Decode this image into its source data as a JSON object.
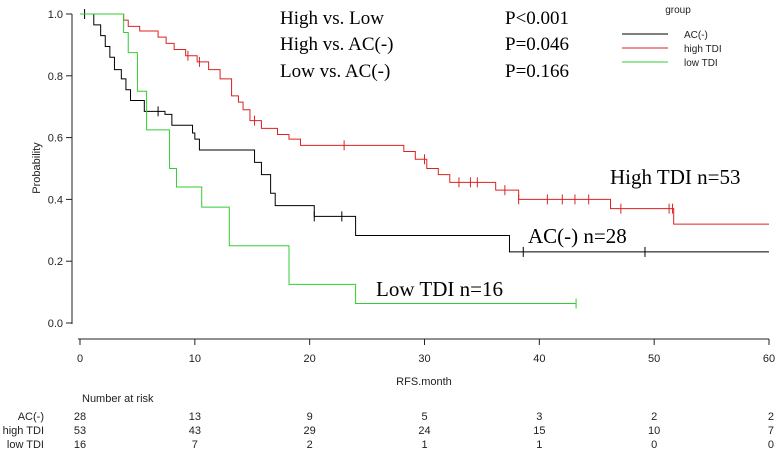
{
  "chart_data": {
    "type": "line",
    "subtype": "kaplan-meier-step",
    "xlabel": "RFS.month",
    "ylabel": "Probability",
    "xlim": [
      0,
      60
    ],
    "ylim": [
      0,
      1
    ],
    "x_ticks": [
      0,
      10,
      20,
      30,
      40,
      50,
      60
    ],
    "y_ticks": [
      "0.0",
      "0.2",
      "0.4",
      "0.6",
      "0.8",
      "1.0"
    ],
    "grid": false,
    "legend": {
      "title": "group",
      "placement": "top-right",
      "entries": [
        {
          "name": "AC(-)",
          "color": "#000000"
        },
        {
          "name": "high TDI",
          "color": "#dd2222"
        },
        {
          "name": "low TDI",
          "color": "#33cc33"
        }
      ]
    },
    "annotations": [
      {
        "comparison": "High vs. Low",
        "p": "P<0.001"
      },
      {
        "comparison": "High vs. AC(-)",
        "p": "P=0.046"
      },
      {
        "comparison": "Low vs. AC(-)",
        "p": "P=0.166"
      }
    ],
    "series": [
      {
        "name": "high TDI",
        "color": "#dd2222",
        "label": "High TDI n=53",
        "steps": [
          [
            0,
            1.0
          ],
          [
            3.8,
            0.98
          ],
          [
            4.2,
            0.96
          ],
          [
            5.2,
            0.945
          ],
          [
            6.8,
            0.925
          ],
          [
            7.5,
            0.905
          ],
          [
            8.2,
            0.885
          ],
          [
            9.2,
            0.865
          ],
          [
            10.2,
            0.845
          ],
          [
            11.2,
            0.82
          ],
          [
            12.2,
            0.79
          ],
          [
            13.2,
            0.735
          ],
          [
            13.8,
            0.715
          ],
          [
            14.2,
            0.69
          ],
          [
            14.8,
            0.655
          ],
          [
            15.8,
            0.63
          ],
          [
            17.2,
            0.61
          ],
          [
            18.2,
            0.595
          ],
          [
            19.2,
            0.575
          ],
          [
            28.2,
            0.555
          ],
          [
            29.2,
            0.53
          ],
          [
            30.2,
            0.5
          ],
          [
            31.2,
            0.48
          ],
          [
            32.2,
            0.455
          ],
          [
            36.2,
            0.43
          ],
          [
            38.2,
            0.4
          ],
          [
            46.2,
            0.37
          ],
          [
            51.2,
            0.37
          ],
          [
            51.7,
            0.32
          ],
          [
            60,
            0.32
          ]
        ],
        "censor_x": [
          9.4,
          10.4,
          15.2,
          23.0,
          30.0,
          33.0,
          34.0,
          34.6,
          37.0,
          38.2,
          40.7,
          42.0,
          43.1,
          44.3,
          47.1,
          51.3,
          51.6
        ]
      },
      {
        "name": "AC(-)",
        "color": "#000000",
        "label": "AC(-) n=28",
        "steps": [
          [
            0,
            1.0
          ],
          [
            1.2,
            0.965
          ],
          [
            1.8,
            0.93
          ],
          [
            2.2,
            0.895
          ],
          [
            2.6,
            0.86
          ],
          [
            3.0,
            0.82
          ],
          [
            3.6,
            0.79
          ],
          [
            4.0,
            0.755
          ],
          [
            4.4,
            0.72
          ],
          [
            5.6,
            0.685
          ],
          [
            7.4,
            0.675
          ],
          [
            8.0,
            0.64
          ],
          [
            9.8,
            0.615
          ],
          [
            10.0,
            0.595
          ],
          [
            10.4,
            0.56
          ],
          [
            15.2,
            0.52
          ],
          [
            15.8,
            0.48
          ],
          [
            16.6,
            0.42
          ],
          [
            17.0,
            0.38
          ],
          [
            20.4,
            0.345
          ],
          [
            24.0,
            0.283
          ],
          [
            37.4,
            0.23
          ],
          [
            60,
            0.23
          ]
        ],
        "censor_x": [
          0.4,
          6.8,
          20.4,
          22.8,
          38.6,
          49.2
        ]
      },
      {
        "name": "low TDI",
        "color": "#33cc33",
        "label": "Low TDI n=16",
        "steps": [
          [
            0,
            1.0
          ],
          [
            3.8,
            0.94
          ],
          [
            4.2,
            0.875
          ],
          [
            5.0,
            0.75
          ],
          [
            5.8,
            0.625
          ],
          [
            7.8,
            0.5
          ],
          [
            8.4,
            0.44
          ],
          [
            10.6,
            0.375
          ],
          [
            13.0,
            0.25
          ],
          [
            18.2,
            0.125
          ],
          [
            24.0,
            0.063
          ],
          [
            43.2,
            0.063
          ]
        ],
        "censor_x": [
          43.2
        ]
      }
    ],
    "risk_table": {
      "title": "Number at risk",
      "times": [
        0,
        10,
        20,
        30,
        40,
        50,
        60
      ],
      "rows": [
        {
          "name": "AC(-)",
          "values": [
            "28",
            "13",
            "9",
            "5",
            "3",
            "2",
            "2"
          ]
        },
        {
          "name": "high TDI",
          "values": [
            "53",
            "43",
            "29",
            "24",
            "15",
            "10",
            "7"
          ]
        },
        {
          "name": "low TDI",
          "values": [
            "16",
            "7",
            "2",
            "1",
            "1",
            "0",
            "0"
          ]
        }
      ]
    }
  }
}
